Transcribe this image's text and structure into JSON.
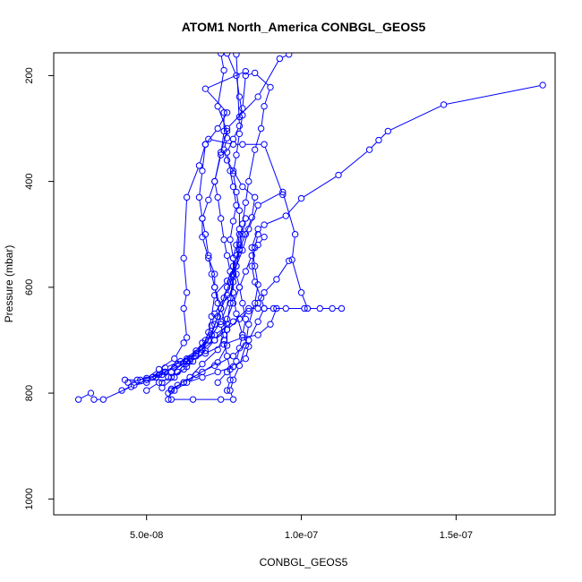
{
  "chart_data": {
    "type": "line",
    "title": "ATOM1 North_America CONBGL_GEOS5",
    "xlabel": "CONBGL_GEOS5",
    "ylabel": "Pressure (mbar)",
    "xlim": [
      2e-08,
      1.82e-07
    ],
    "ylim": [
      1030,
      157
    ],
    "x_ticks": [
      5e-08,
      1e-07,
      1.5e-07
    ],
    "x_tick_labels": [
      "5.0e-08",
      "1.0e-07",
      "1.5e-07"
    ],
    "y_ticks": [
      200,
      400,
      600,
      800,
      1000
    ],
    "y_tick_labels": [
      "200",
      "400",
      "600",
      "800",
      "1000"
    ],
    "grid": false,
    "legend": "none",
    "colors": {
      "series": "#0000ff",
      "axis": "#000000",
      "background": "#ffffff"
    },
    "series": [
      {
        "points": [
          [
            2.8e-08,
            812
          ],
          [
            3.2e-08,
            800
          ],
          [
            3.3e-08,
            812
          ],
          [
            3.6e-08,
            812
          ],
          [
            4.5e-08,
            788
          ],
          [
            5e-08,
            775
          ],
          [
            5.6e-08,
            760
          ],
          [
            6e-08,
            745
          ],
          [
            6.6e-08,
            725
          ],
          [
            7.2e-08,
            700
          ],
          [
            7.6e-08,
            670
          ],
          [
            7.7e-08,
            630
          ],
          [
            7.8e-08,
            590
          ],
          [
            7.9e-08,
            560
          ],
          [
            8e-08,
            530
          ],
          [
            8.1e-08,
            500
          ],
          [
            8.2e-08,
            470
          ]
        ]
      },
      {
        "points": [
          [
            4.2e-08,
            795
          ],
          [
            4.6e-08,
            785
          ],
          [
            5e-08,
            780
          ],
          [
            5.5e-08,
            765
          ],
          [
            6.1e-08,
            740
          ],
          [
            6.6e-08,
            720
          ],
          [
            7e-08,
            700
          ],
          [
            7.4e-08,
            665
          ],
          [
            7.7e-08,
            620
          ],
          [
            7.8e-08,
            580
          ],
          [
            7.8e-08,
            545
          ],
          [
            7.9e-08,
            520
          ],
          [
            8e-08,
            490
          ],
          [
            8e-08,
            455
          ],
          [
            7.9e-08,
            420
          ],
          [
            7.8e-08,
            385
          ],
          [
            7.9e-08,
            350
          ],
          [
            8e-08,
            310
          ],
          [
            8.1e-08,
            275
          ],
          [
            8e-08,
            240
          ],
          [
            7.9e-08,
            200
          ],
          [
            7.6e-08,
            158
          ]
        ]
      },
      {
        "points": [
          [
            4.3e-08,
            775
          ],
          [
            4.7e-08,
            775
          ],
          [
            5.2e-08,
            770
          ],
          [
            5.8e-08,
            760
          ],
          [
            6.3e-08,
            740
          ],
          [
            6.8e-08,
            718
          ],
          [
            7.1e-08,
            690
          ],
          [
            7.3e-08,
            655
          ],
          [
            7.6e-08,
            615
          ],
          [
            7.8e-08,
            575
          ],
          [
            8.1e-08,
            530
          ],
          [
            8.3e-08,
            490
          ],
          [
            8.6e-08,
            445
          ],
          [
            9.4e-08,
            420
          ],
          [
            9.8e-08,
            500
          ],
          [
            9.7e-08,
            548
          ],
          [
            1e-07,
            610
          ],
          [
            1.02e-07,
            640
          ],
          [
            1.06e-07,
            640
          ],
          [
            1.1e-07,
            640
          ],
          [
            1.13e-07,
            640
          ]
        ]
      },
      {
        "points": [
          [
            5.8e-08,
            812
          ],
          [
            6.5e-08,
            812
          ],
          [
            7.4e-08,
            812
          ],
          [
            7.8e-08,
            812
          ],
          [
            7.7e-08,
            795
          ],
          [
            7.8e-08,
            775
          ],
          [
            8e-08,
            748
          ],
          [
            8.2e-08,
            710
          ],
          [
            8.3e-08,
            670
          ],
          [
            8.5e-08,
            630
          ],
          [
            8.6e-08,
            595
          ],
          [
            8.5e-08,
            560
          ],
          [
            8.4e-08,
            525
          ],
          [
            8.6e-08,
            490
          ],
          [
            8.8e-08,
            482
          ],
          [
            9.5e-08,
            465
          ],
          [
            1e-07,
            432
          ],
          [
            1.12e-07,
            388
          ],
          [
            1.22e-07,
            340
          ],
          [
            1.25e-07,
            322
          ],
          [
            1.28e-07,
            305
          ],
          [
            1.46e-07,
            255
          ],
          [
            1.78e-07,
            218
          ]
        ]
      },
      {
        "points": [
          [
            5.7e-08,
            812
          ],
          [
            5.8e-08,
            795
          ],
          [
            6.2e-08,
            780
          ],
          [
            6.8e-08,
            760
          ],
          [
            7.3e-08,
            742
          ],
          [
            7.6e-08,
            710
          ],
          [
            7.6e-08,
            680
          ],
          [
            7.4e-08,
            640
          ],
          [
            7.2e-08,
            600
          ],
          [
            7.2e-08,
            575
          ],
          [
            7e-08,
            545
          ],
          [
            6.8e-08,
            505
          ],
          [
            6.8e-08,
            470
          ],
          [
            7e-08,
            435
          ],
          [
            7.2e-08,
            400
          ],
          [
            7.4e-08,
            345
          ],
          [
            7.6e-08,
            305
          ],
          [
            7.3e-08,
            258
          ],
          [
            7.5e-08,
            190
          ],
          [
            7.4e-08,
            158
          ]
        ]
      },
      {
        "points": [
          [
            5.2e-08,
            770
          ],
          [
            5.6e-08,
            752
          ],
          [
            6.3e-08,
            735
          ],
          [
            6.8e-08,
            715
          ],
          [
            7e-08,
            685
          ],
          [
            7.1e-08,
            655
          ],
          [
            7.2e-08,
            615
          ],
          [
            7.6e-08,
            588
          ],
          [
            7.9e-08,
            560
          ],
          [
            8e-08,
            520
          ],
          [
            8.1e-08,
            480
          ],
          [
            8.2e-08,
            440
          ],
          [
            8.3e-08,
            400
          ],
          [
            8.5e-08,
            340
          ],
          [
            8.7e-08,
            300
          ],
          [
            8.8e-08,
            258
          ],
          [
            9e-08,
            222
          ],
          [
            8.5e-08,
            195
          ],
          [
            8.2e-08,
            200
          ],
          [
            8.1e-08,
            262
          ],
          [
            8e-08,
            278
          ]
        ]
      },
      {
        "points": [
          [
            4.4e-08,
            780
          ],
          [
            5e-08,
            772
          ],
          [
            5.4e-08,
            755
          ],
          [
            5.9e-08,
            735
          ],
          [
            6.2e-08,
            705
          ],
          [
            6.3e-08,
            695
          ],
          [
            6.2e-08,
            640
          ],
          [
            6.3e-08,
            610
          ],
          [
            6.2e-08,
            545
          ],
          [
            6.3e-08,
            430
          ],
          [
            6.7e-08,
            370
          ],
          [
            6.9e-08,
            330
          ],
          [
            7e-08,
            320
          ],
          [
            7.8e-08,
            330
          ],
          [
            8.1e-08,
            330
          ],
          [
            8.8e-08,
            330
          ],
          [
            9.4e-08,
            425
          ]
        ]
      },
      {
        "points": [
          [
            5.5e-08,
            780
          ],
          [
            5.7e-08,
            770
          ],
          [
            6e-08,
            760
          ],
          [
            6.4e-08,
            735
          ],
          [
            6.8e-08,
            705
          ],
          [
            7.2e-08,
            690
          ],
          [
            7.8e-08,
            665
          ],
          [
            8.3e-08,
            640
          ],
          [
            8.6e-08,
            640
          ],
          [
            8.8e-08,
            640
          ],
          [
            9.1e-08,
            640
          ],
          [
            9.5e-08,
            640
          ],
          [
            1.01e-07,
            640
          ]
        ]
      },
      {
        "points": [
          [
            5.3e-08,
            770
          ],
          [
            5.6e-08,
            760
          ],
          [
            6.2e-08,
            745
          ],
          [
            6.6e-08,
            725
          ],
          [
            6.9e-08,
            700
          ],
          [
            7.1e-08,
            672
          ],
          [
            7.2e-08,
            650
          ],
          [
            7.5e-08,
            620
          ],
          [
            7.7e-08,
            590
          ],
          [
            7.8e-08,
            560
          ],
          [
            8e-08,
            528
          ],
          [
            8.2e-08,
            500
          ],
          [
            8.4e-08,
            468
          ],
          [
            8.5e-08,
            430
          ],
          [
            8.1e-08,
            410
          ],
          [
            7.8e-08,
            380
          ],
          [
            7.6e-08,
            360
          ],
          [
            7.5e-08,
            340
          ],
          [
            7.6e-08,
            318
          ],
          [
            7.6e-08,
            300
          ],
          [
            8.6e-08,
            240
          ],
          [
            9.3e-08,
            168
          ],
          [
            9.6e-08,
            160
          ]
        ]
      },
      {
        "points": [
          [
            5.7e-08,
            800
          ],
          [
            6e-08,
            785
          ],
          [
            6.4e-08,
            770
          ],
          [
            6.8e-08,
            745
          ],
          [
            7.3e-08,
            718
          ],
          [
            7.5e-08,
            690
          ],
          [
            7.6e-08,
            660
          ],
          [
            7.8e-08,
            630
          ],
          [
            8e-08,
            600
          ],
          [
            8.2e-08,
            570
          ],
          [
            8.4e-08,
            540
          ],
          [
            8.6e-08,
            520
          ],
          [
            8.8e-08,
            505
          ]
        ]
      },
      {
        "points": [
          [
            5.8e-08,
            792
          ],
          [
            6.2e-08,
            780
          ],
          [
            6.6e-08,
            765
          ],
          [
            7.2e-08,
            748
          ],
          [
            7.8e-08,
            730
          ],
          [
            8.3e-08,
            700
          ],
          [
            8.6e-08,
            665
          ],
          [
            8.8e-08,
            640
          ],
          [
            8.7e-08,
            620
          ],
          [
            8.5e-08,
            590
          ],
          [
            8.4e-08,
            560
          ],
          [
            8.5e-08,
            525
          ],
          [
            8.6e-08,
            500
          ]
        ]
      },
      {
        "points": [
          [
            7.6e-08,
            795
          ],
          [
            7.7e-08,
            775
          ],
          [
            7.7e-08,
            755
          ],
          [
            7.6e-08,
            730
          ],
          [
            7.5e-08,
            700
          ],
          [
            7.4e-08,
            670
          ],
          [
            7.3e-08,
            630
          ],
          [
            7.2e-08,
            600
          ],
          [
            7.1e-08,
            575
          ],
          [
            7e-08,
            540
          ],
          [
            6.9e-08,
            500
          ],
          [
            6.8e-08,
            470
          ],
          [
            6.7e-08,
            430
          ],
          [
            6.8e-08,
            380
          ],
          [
            6.9e-08,
            330
          ],
          [
            7.3e-08,
            300
          ],
          [
            7.6e-08,
            270
          ],
          [
            6.9e-08,
            225
          ],
          [
            8.2e-08,
            192
          ]
        ]
      },
      {
        "points": [
          [
            5.5e-08,
            790
          ],
          [
            5.9e-08,
            770
          ],
          [
            6.3e-08,
            750
          ],
          [
            6.6e-08,
            730
          ],
          [
            7e-08,
            700
          ],
          [
            7.2e-08,
            670
          ],
          [
            7.4e-08,
            640
          ],
          [
            7.6e-08,
            600
          ],
          [
            7.7e-08,
            570
          ],
          [
            7.6e-08,
            540
          ],
          [
            7.5e-08,
            510
          ],
          [
            7.4e-08,
            470
          ],
          [
            7.3e-08,
            430
          ],
          [
            7.2e-08,
            400
          ],
          [
            7.4e-08,
            350
          ],
          [
            7.5e-08,
            305
          ],
          [
            7.5e-08,
            270
          ]
        ]
      },
      {
        "points": [
          [
            5e-08,
            795
          ],
          [
            5.4e-08,
            780
          ],
          [
            5.8e-08,
            770
          ],
          [
            6.2e-08,
            755
          ],
          [
            6.5e-08,
            740
          ],
          [
            6.9e-08,
            720
          ],
          [
            7.2e-08,
            700
          ],
          [
            7.6e-08,
            680
          ],
          [
            8e-08,
            660
          ],
          [
            8.3e-08,
            645
          ],
          [
            8.6e-08,
            630
          ],
          [
            8.8e-08,
            610
          ],
          [
            9.2e-08,
            585
          ],
          [
            9.6e-08,
            550
          ]
        ]
      },
      {
        "points": [
          [
            4.8e-08,
            775
          ],
          [
            5.4e-08,
            765
          ],
          [
            5.9e-08,
            752
          ],
          [
            6.4e-08,
            740
          ],
          [
            6.9e-08,
            725
          ],
          [
            7.5e-08,
            708
          ],
          [
            8.1e-08,
            695
          ],
          [
            8.6e-08,
            690
          ],
          [
            9e-08,
            670
          ],
          [
            9.2e-08,
            640
          ]
        ]
      },
      {
        "points": [
          [
            5.9e-08,
            795
          ],
          [
            6.3e-08,
            780
          ],
          [
            6.8e-08,
            770
          ],
          [
            7.3e-08,
            760
          ],
          [
            7.8e-08,
            750
          ],
          [
            8.2e-08,
            735
          ],
          [
            8.3e-08,
            712
          ],
          [
            8.1e-08,
            690
          ],
          [
            7.9e-08,
            650
          ],
          [
            7.8e-08,
            610
          ],
          [
            7.8e-08,
            575
          ],
          [
            7.9e-08,
            540
          ],
          [
            8e-08,
            500
          ]
        ]
      },
      {
        "points": [
          [
            7.3e-08,
            780
          ],
          [
            7.6e-08,
            760
          ],
          [
            7.9e-08,
            740
          ],
          [
            8e-08,
            715
          ],
          [
            8.1e-08,
            690
          ],
          [
            8.2e-08,
            660
          ],
          [
            8.1e-08,
            630
          ],
          [
            8e-08,
            600
          ],
          [
            7.9e-08,
            575
          ],
          [
            7.8e-08,
            545
          ],
          [
            7.7e-08,
            510
          ],
          [
            7.8e-08,
            475
          ],
          [
            7.9e-08,
            445
          ],
          [
            7.8e-08,
            410
          ],
          [
            7.7e-08,
            380
          ],
          [
            7.6e-08,
            345
          ],
          [
            7.8e-08,
            320
          ],
          [
            8e-08,
            295
          ],
          [
            7.9e-08,
            160
          ]
        ]
      }
    ]
  }
}
